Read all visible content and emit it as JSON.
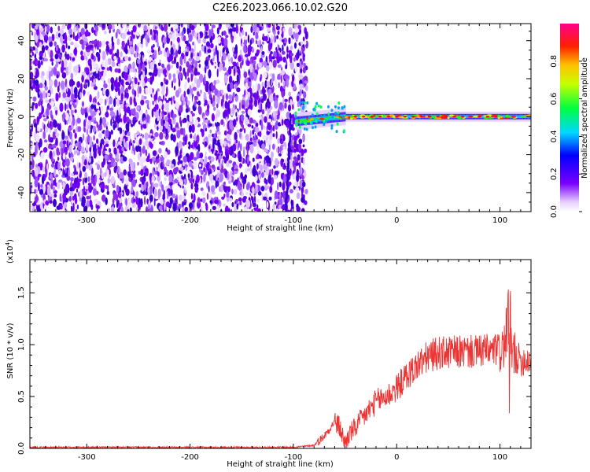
{
  "title": "C2E6.2023.066.10.02.G20",
  "colors": {
    "snr_line": "#ee3333",
    "ridge_peak": "#ff0000"
  },
  "chart_data": [
    {
      "type": "heatmap",
      "xlabel": "Height of straight line (km)",
      "ylabel": "Frequency (Hz)",
      "xlim": [
        -355,
        130
      ],
      "ylim": [
        -50,
        49
      ],
      "xticks": [
        -300,
        -200,
        -100,
        0,
        100
      ],
      "yticks": [
        -40,
        -20,
        0,
        20,
        40
      ],
      "colorbar": {
        "label": "Normalized spectral amplitude",
        "range": [
          0.0,
          1.0
        ],
        "ticks": [
          "0.0",
          "0.2",
          "0.4",
          "0.6",
          "0.8"
        ],
        "colormap": "rainbow"
      },
      "features": {
        "noise_region_x": [
          -355,
          -95
        ],
        "signal_ridge_frequency_hz": 0,
        "signal_ridge_x": [
          -98,
          130
        ]
      }
    },
    {
      "type": "line",
      "xlabel": "Height of straight line (km)",
      "ylabel": "SNR (10 * v/v)",
      "scale_label": "(x10",
      "scale_exp": "4",
      "scale_close": ")",
      "xlim": [
        -355,
        130
      ],
      "ylim": [
        0,
        1.82
      ],
      "xticks": [
        -300,
        -200,
        -100,
        0,
        100
      ],
      "yticks": [
        "0.0",
        "0.5",
        "1.0",
        "1.5"
      ],
      "series": [
        {
          "x": [
            -355,
            -300,
            -250,
            -200,
            -150,
            -100,
            -80,
            -70,
            -60,
            -55,
            -50,
            -45,
            -40,
            -30,
            -20,
            -10,
            0,
            10,
            20,
            30,
            40,
            50,
            60,
            70,
            80,
            85,
            90,
            95,
            100,
            105,
            108,
            110,
            112,
            115,
            120,
            130
          ],
          "y": [
            0.01,
            0.01,
            0.01,
            0.01,
            0.01,
            0.01,
            0.03,
            0.12,
            0.26,
            0.2,
            0.05,
            0.15,
            0.2,
            0.33,
            0.45,
            0.5,
            0.58,
            0.7,
            0.8,
            0.88,
            0.92,
            0.92,
            0.93,
            0.93,
            0.93,
            0.95,
            0.93,
            0.95,
            0.95,
            1.0,
            1.3,
            0.6,
            0.95,
            0.88,
            0.85,
            0.86
          ]
        }
      ]
    }
  ]
}
